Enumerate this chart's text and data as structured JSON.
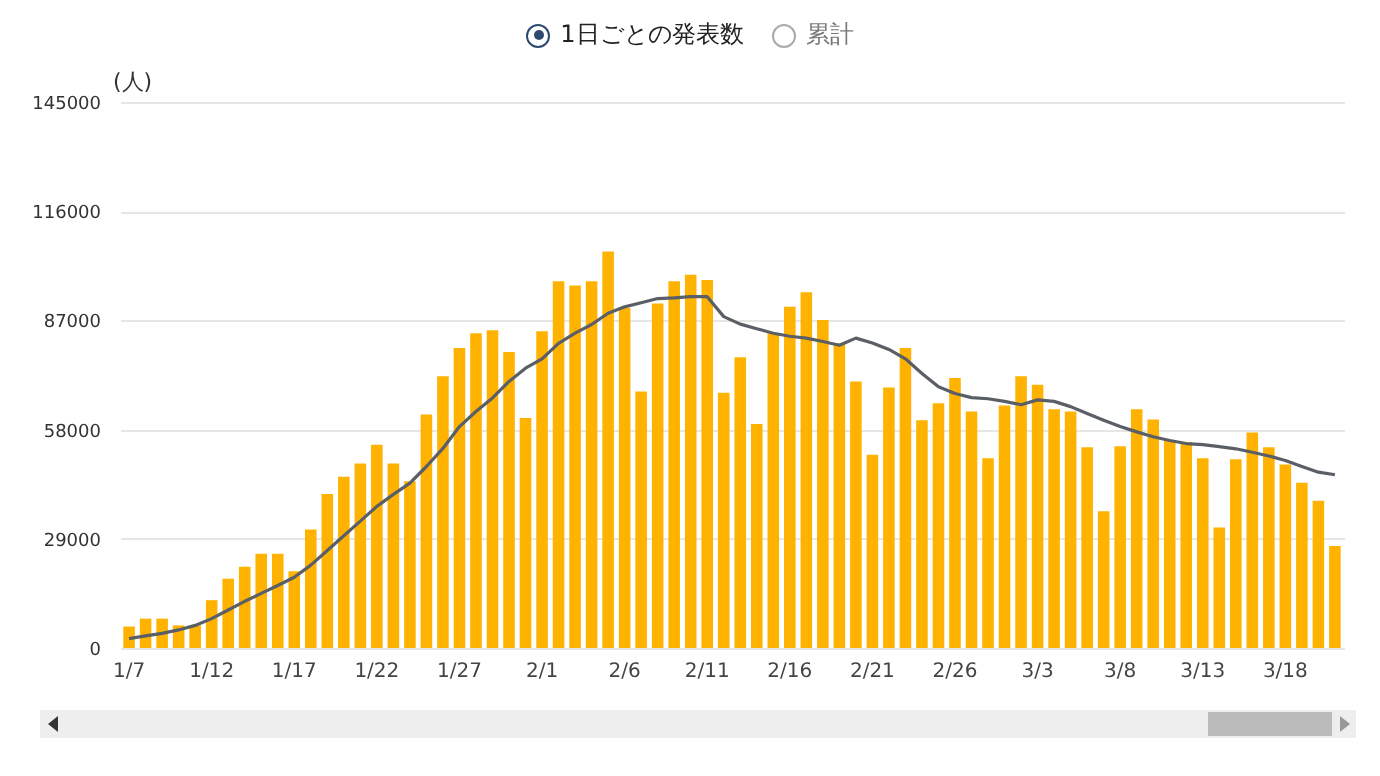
{
  "chart_data": {
    "type": "bar",
    "annotations": [
      "1日ごとの発表数",
      "累計"
    ],
    "ylabel": "(人)",
    "categories": [
      "1/7",
      null,
      null,
      null,
      null,
      "1/12",
      null,
      null,
      null,
      null,
      "1/17",
      null,
      null,
      null,
      null,
      "1/22",
      null,
      null,
      null,
      null,
      "1/27",
      null,
      null,
      null,
      null,
      "2/1",
      null,
      null,
      null,
      null,
      "2/6",
      null,
      null,
      null,
      null,
      "2/11",
      null,
      null,
      null,
      null,
      "2/16",
      null,
      null,
      null,
      null,
      "2/21",
      null,
      null,
      null,
      null,
      "2/26",
      null,
      null,
      null,
      null,
      "3/3",
      null,
      null,
      null,
      null,
      "3/8",
      null,
      null,
      null,
      null,
      "3/13",
      null,
      null,
      null,
      null,
      "3/18",
      null,
      null,
      null
    ],
    "series": [
      {
        "color": "#ffb300",
        "values": [
          5700,
          7800,
          7800,
          6000,
          6000,
          12700,
          18400,
          21600,
          25000,
          25000,
          20400,
          31500,
          40900,
          45500,
          49000,
          54000,
          49000,
          44300,
          62000,
          72200,
          79700,
          83600,
          84400,
          78600,
          61100,
          84100,
          97400,
          96300,
          97400,
          105300,
          90300,
          68100,
          91500,
          97400,
          99100,
          97700,
          67800,
          77200,
          59500,
          83600,
          90600,
          94500,
          87100,
          80900,
          70800,
          51300,
          69200,
          79700,
          60500,
          65000,
          71700,
          62800,
          50400,
          64400,
          72200,
          69900,
          63400,
          62800,
          53300,
          36300,
          53600,
          63400,
          60700,
          55200,
          54700,
          50400,
          32000,
          50100,
          57200,
          53300,
          48700,
          43900,
          39100,
          27100
        ]
      },
      {
        "type": "line",
        "color": "#5a5e66",
        "values": [
          2500,
          3200,
          3900,
          4800,
          6000,
          7800,
          10100,
          12400,
          14500,
          16600,
          18800,
          22000,
          25900,
          29800,
          33700,
          37600,
          40800,
          43800,
          48200,
          53000,
          58800,
          62800,
          66400,
          70800,
          74300,
          76800,
          80900,
          83600,
          85900,
          88900,
          90600,
          91700,
          92800,
          93000,
          93300,
          93300,
          88000,
          86000,
          84800,
          83600,
          82800,
          82300,
          81400,
          80400,
          82300,
          81000,
          79300,
          76800,
          72900,
          69400,
          67600,
          66500,
          66200,
          65500,
          64600,
          65900,
          65500,
          64100,
          62300,
          60500,
          58800,
          57400,
          56100,
          55100,
          54300,
          54000,
          53500,
          52900,
          52000,
          51000,
          49800,
          48200,
          46700,
          46000
        ]
      }
    ],
    "ylim": [
      0,
      145000
    ],
    "yticks": [
      0,
      29000,
      58000,
      87000,
      116000,
      145000
    ],
    "grid": "y"
  }
}
